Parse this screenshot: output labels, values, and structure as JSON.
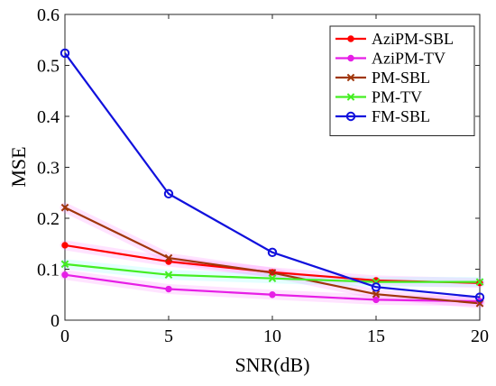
{
  "chart_data": {
    "type": "line",
    "xlabel": "SNR(dB)",
    "ylabel": "MSE",
    "xlim": [
      0,
      20
    ],
    "ylim": [
      0,
      0.6
    ],
    "x": [
      0,
      5,
      10,
      15,
      20
    ],
    "xticks": [
      "0",
      "5",
      "10",
      "15",
      "20"
    ],
    "yticks": [
      "0",
      "0.1",
      "0.2",
      "0.3",
      "0.4",
      "0.5",
      "0.6"
    ],
    "grid": false,
    "legend_position": "top-right",
    "series": [
      {
        "name": "AziPM-SBL",
        "color": "#ff0000",
        "marker": "dot",
        "halo": "#ff66ff",
        "values": [
          0.147,
          0.115,
          0.094,
          0.078,
          0.073
        ]
      },
      {
        "name": "AziPM-TV",
        "color": "#e61ee6",
        "marker": "dot",
        "halo": "#ff66ff",
        "values": [
          0.089,
          0.061,
          0.05,
          0.04,
          0.037
        ]
      },
      {
        "name": "PM-SBL",
        "color": "#a0360a",
        "marker": "x",
        "halo": "#ff66ff",
        "values": [
          0.221,
          0.122,
          0.093,
          0.051,
          0.033
        ]
      },
      {
        "name": "PM-TV",
        "color": "#44ee22",
        "marker": "x",
        "halo": "#66ffff",
        "values": [
          0.11,
          0.089,
          0.082,
          0.075,
          0.075
        ]
      },
      {
        "name": "FM-SBL",
        "color": "#1111dd",
        "marker": "circle",
        "halo": null,
        "values": [
          0.524,
          0.248,
          0.133,
          0.065,
          0.045
        ]
      }
    ]
  }
}
